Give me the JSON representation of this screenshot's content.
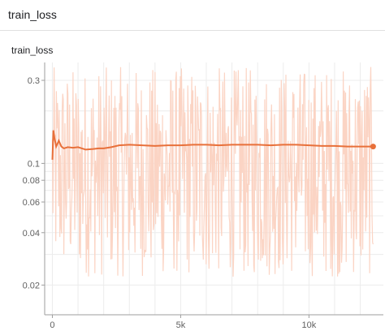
{
  "header": {
    "title": "train_loss"
  },
  "chart_data": {
    "type": "line",
    "title": "train_loss",
    "xlabel": "",
    "ylabel": "",
    "y_scale": "log",
    "xlim": [
      -300,
      12900
    ],
    "ylim": [
      0.0135,
      0.38
    ],
    "x_ticks": [
      {
        "value": 0,
        "label": "0"
      },
      {
        "value": 5000,
        "label": "5k"
      },
      {
        "value": 10000,
        "label": "10k"
      }
    ],
    "y_ticks": [
      {
        "value": 0.02,
        "label": "0.02"
      },
      {
        "value": 0.04,
        "label": "0.04"
      },
      {
        "value": 0.06,
        "label": "0.06"
      },
      {
        "value": 0.08,
        "label": "0.08"
      },
      {
        "value": 0.1,
        "label": "0.1"
      },
      {
        "value": 0.3,
        "label": "0.3"
      }
    ],
    "grid": true,
    "series": [
      {
        "role": "smoothed",
        "color": "#e8703a",
        "x": [
          0,
          40,
          80,
          150,
          250,
          350,
          450,
          600,
          800,
          1000,
          1300,
          1600,
          1800,
          2000,
          2300,
          2600,
          3000,
          3500,
          4000,
          4500,
          5000,
          5500,
          6000,
          6500,
          7000,
          7500,
          8000,
          8500,
          9000,
          9500,
          10000,
          10500,
          11000,
          11500,
          12000,
          12500
        ],
        "values": [
          0.105,
          0.155,
          0.14,
          0.125,
          0.135,
          0.125,
          0.122,
          0.124,
          0.123,
          0.124,
          0.12,
          0.121,
          0.122,
          0.122,
          0.124,
          0.127,
          0.128,
          0.127,
          0.126,
          0.127,
          0.127,
          0.128,
          0.128,
          0.127,
          0.128,
          0.128,
          0.128,
          0.127,
          0.128,
          0.128,
          0.127,
          0.126,
          0.126,
          0.125,
          0.125,
          0.125
        ]
      },
      {
        "role": "raw",
        "color": "#fbd4c4",
        "x_range": [
          0,
          12500
        ],
        "value_range": [
          0.0135,
          0.36
        ],
        "samples": 560
      }
    ]
  }
}
